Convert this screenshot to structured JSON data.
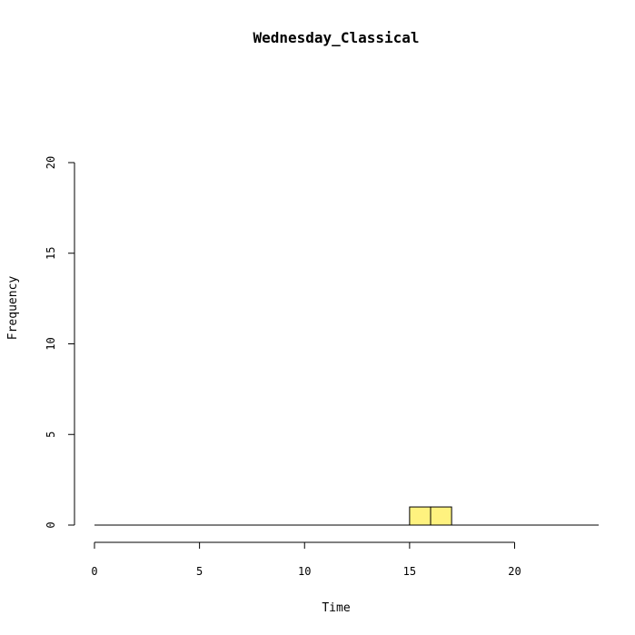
{
  "chart_data": {
    "type": "bar",
    "title": "Wednesday_Classical",
    "xlabel": "Time",
    "ylabel": "Frequency",
    "xlim": [
      0,
      24
    ],
    "ylim": [
      0,
      20
    ],
    "x_ticks": [
      0,
      5,
      10,
      15,
      20
    ],
    "y_ticks": [
      0,
      5,
      10,
      15,
      20
    ],
    "bin_width": 1,
    "bins": [
      {
        "start": 0,
        "count": 0
      },
      {
        "start": 1,
        "count": 0
      },
      {
        "start": 2,
        "count": 0
      },
      {
        "start": 3,
        "count": 0
      },
      {
        "start": 4,
        "count": 0
      },
      {
        "start": 5,
        "count": 0
      },
      {
        "start": 6,
        "count": 0
      },
      {
        "start": 7,
        "count": 0
      },
      {
        "start": 8,
        "count": 0
      },
      {
        "start": 9,
        "count": 0
      },
      {
        "start": 10,
        "count": 0
      },
      {
        "start": 11,
        "count": 0
      },
      {
        "start": 12,
        "count": 0
      },
      {
        "start": 13,
        "count": 0
      },
      {
        "start": 14,
        "count": 0
      },
      {
        "start": 15,
        "count": 1
      },
      {
        "start": 16,
        "count": 1
      },
      {
        "start": 17,
        "count": 0
      },
      {
        "start": 18,
        "count": 0
      },
      {
        "start": 19,
        "count": 0
      },
      {
        "start": 20,
        "count": 0
      },
      {
        "start": 21,
        "count": 0
      },
      {
        "start": 22,
        "count": 0
      },
      {
        "start": 23,
        "count": 0
      }
    ],
    "bar_color": "#FFF27F",
    "grid": false,
    "legend": "none"
  }
}
